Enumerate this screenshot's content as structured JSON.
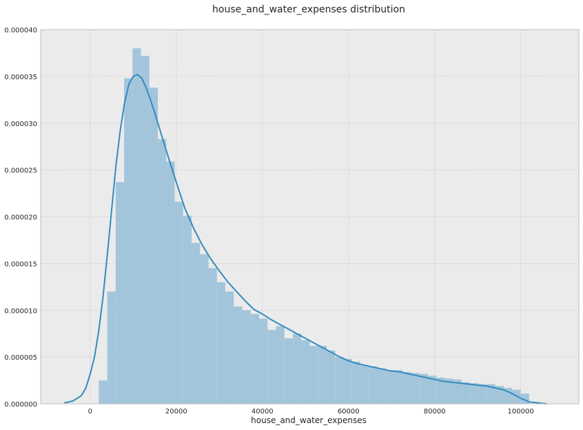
{
  "chart_data": {
    "type": "histogram+kde",
    "title": "house_and_water_expenses distribution",
    "xlabel": "house_and_water_expenses",
    "ylabel": "",
    "xlim": [
      -11500,
      113500
    ],
    "ylim": [
      0,
      4e-05
    ],
    "x_ticks": [
      0,
      20000,
      40000,
      60000,
      80000,
      100000
    ],
    "x_tick_labels": [
      "0",
      "20000",
      "40000",
      "60000",
      "80000",
      "100000"
    ],
    "y_ticks": [
      0,
      5e-06,
      1e-05,
      1.5e-05,
      2e-05,
      2.5e-05,
      3e-05,
      3.5e-05,
      4e-05
    ],
    "y_tick_labels": [
      "0.000000",
      "0.000005",
      "0.000010",
      "0.000015",
      "0.000020",
      "0.000025",
      "0.000030",
      "0.000035",
      "0.000040"
    ],
    "grid": true,
    "colors": {
      "plot_background": "#ebebeb",
      "grid": "#c8c8c8",
      "bars": "#a3c5db",
      "kde_line": "#348abd",
      "frame": "#bcbcbc",
      "text": "#262626"
    },
    "histogram": {
      "bin_start": 2000,
      "bin_width": 1960,
      "values": [
        2.5e-06,
        1.2e-05,
        2.37e-05,
        3.48e-05,
        3.8e-05,
        3.72e-05,
        3.38e-05,
        2.83e-05,
        2.59e-05,
        2.16e-05,
        2.01e-05,
        1.72e-05,
        1.6e-05,
        1.45e-05,
        1.3e-05,
        1.2e-05,
        1.04e-05,
        1e-05,
        9.6e-06,
        9.1e-06,
        7.9e-06,
        8.3e-06,
        7e-06,
        7.5e-06,
        6.8e-06,
        6.2e-06,
        6.2e-06,
        5.7e-06,
        5e-06,
        4.8e-06,
        4.5e-06,
        4.1e-06,
        4e-06,
        3.8e-06,
        3.6e-06,
        3.6e-06,
        3.4e-06,
        3.3e-06,
        3.2e-06,
        3e-06,
        2.8e-06,
        2.7e-06,
        2.6e-06,
        2.3e-06,
        2.2e-06,
        2.1e-06,
        2.1e-06,
        1.9e-06,
        1.7e-06,
        1.5e-06,
        1.1e-06
      ]
    },
    "kde": {
      "x": [
        -6000,
        -4000,
        -2000,
        -1000,
        0,
        1000,
        2000,
        3000,
        4000,
        5000,
        6000,
        7000,
        8000,
        9000,
        10000,
        11000,
        12000,
        13000,
        14000,
        15000,
        16000,
        18000,
        20000,
        22000,
        24000,
        26000,
        28000,
        30000,
        32000,
        34000,
        36000,
        38000,
        40000,
        42000,
        44000,
        46000,
        48000,
        50000,
        52000,
        54000,
        56000,
        58000,
        60000,
        62000,
        64000,
        66000,
        68000,
        70000,
        72000,
        74000,
        76000,
        78000,
        80000,
        82000,
        84000,
        86000,
        88000,
        90000,
        92000,
        94000,
        96000,
        98000,
        100000,
        102000,
        104000,
        106000
      ],
      "y": [
        1e-07,
        3e-07,
        9e-07,
        1.7e-06,
        3.2e-06,
        5e-06,
        7.8e-06,
        1.15e-05,
        1.6e-05,
        2.08e-05,
        2.55e-05,
        2.93e-05,
        3.22e-05,
        3.42e-05,
        3.5e-05,
        3.52e-05,
        3.48e-05,
        3.38e-05,
        3.25e-05,
        3.11e-05,
        2.96e-05,
        2.66e-05,
        2.37e-05,
        2.09e-05,
        1.88e-05,
        1.7e-05,
        1.55e-05,
        1.42e-05,
        1.3e-05,
        1.2e-05,
        1.1e-05,
        1.01e-05,
        9.6e-06,
        9e-06,
        8.5e-06,
        8e-06,
        7.5e-06,
        7e-06,
        6.5e-06,
        6e-06,
        5.5e-06,
        5e-06,
        4.6e-06,
        4.3e-06,
        4.1e-06,
        3.9e-06,
        3.7e-06,
        3.5e-06,
        3.4e-06,
        3.2e-06,
        3e-06,
        2.8e-06,
        2.6e-06,
        2.4e-06,
        2.3e-06,
        2.2e-06,
        2.1e-06,
        2e-06,
        1.9e-06,
        1.7e-06,
        1.5e-06,
        1.1e-06,
        6e-07,
        2e-07,
        1e-07,
        0.0
      ]
    }
  }
}
